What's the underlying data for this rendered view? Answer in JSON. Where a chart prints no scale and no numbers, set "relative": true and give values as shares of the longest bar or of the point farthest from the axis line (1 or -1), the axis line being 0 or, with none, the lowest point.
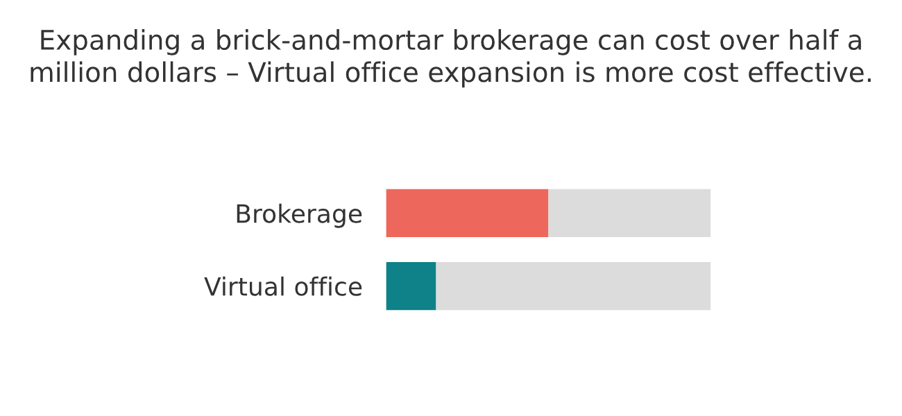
{
  "chart_data": {
    "type": "bar",
    "orientation": "horizontal",
    "stacked": true,
    "relative": true,
    "title": "Expanding a brick-and-mortar brokerage can cost over half a million dollars – Virtual office expansion is more cost effective.",
    "categories": [
      "Brokerage",
      "Virtual office"
    ],
    "series": [
      {
        "colors": [
          "#ee675c",
          "#0e8288"
        ],
        "values": [
          0.5,
          0.154
        ]
      },
      {
        "color": "#dcdcdc",
        "values": [
          0.5,
          0.846
        ]
      }
    ],
    "grid": false,
    "legend": false,
    "tick_labels": "y"
  }
}
